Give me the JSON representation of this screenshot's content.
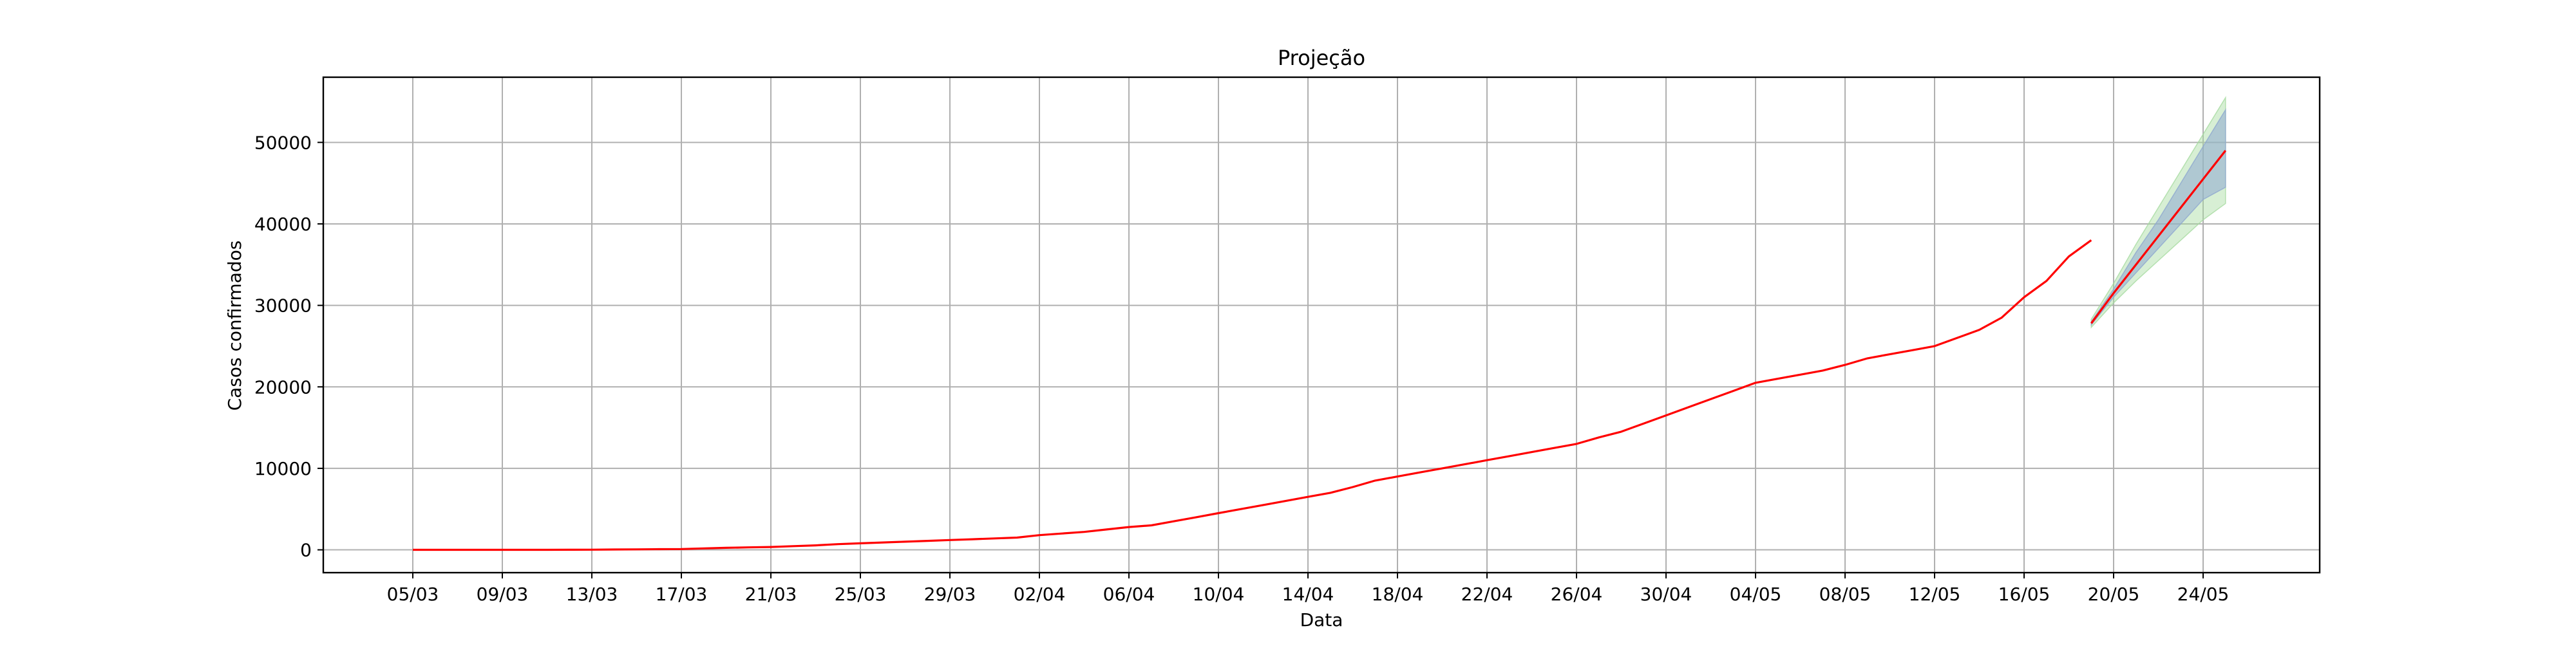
{
  "chart_data": {
    "type": "line",
    "title": "Projeção",
    "xlabel": "Data",
    "ylabel": "Casos confirmados",
    "x_tick_labels": [
      "05/03",
      "09/03",
      "13/03",
      "17/03",
      "21/03",
      "25/03",
      "29/03",
      "02/04",
      "06/04",
      "10/04",
      "14/04",
      "18/04",
      "22/04",
      "26/04",
      "30/04",
      "04/05",
      "08/05",
      "12/05",
      "16/05",
      "20/05",
      "24/05"
    ],
    "y_ticks": [
      0,
      10000,
      20000,
      30000,
      40000,
      50000
    ],
    "ylim": [
      -2800,
      58000
    ],
    "grid": true,
    "colors": {
      "line": "#ff0000",
      "band_outer": "#a6dba0",
      "band_inner": "#8ea7d0",
      "grid": "#b0b0b0"
    },
    "series": [
      {
        "x": [
          "05/03",
          "06/03",
          "07/03",
          "08/03",
          "09/03",
          "10/03",
          "11/03",
          "12/03",
          "13/03",
          "14/03",
          "15/03",
          "16/03",
          "17/03",
          "18/03",
          "19/03",
          "20/03",
          "21/03",
          "22/03",
          "23/03",
          "24/03",
          "25/03",
          "26/03",
          "27/03",
          "28/03",
          "29/03",
          "30/03",
          "31/03",
          "01/04",
          "02/04",
          "03/04",
          "04/04",
          "05/04",
          "06/04",
          "07/04",
          "08/04",
          "09/04",
          "10/04",
          "11/04",
          "12/04",
          "13/04",
          "14/04",
          "15/04",
          "16/04",
          "17/04",
          "18/04",
          "19/04",
          "20/04",
          "21/04",
          "22/04",
          "23/04",
          "24/04",
          "25/04",
          "26/04",
          "27/04",
          "28/04",
          "29/04",
          "30/04",
          "01/05",
          "02/05",
          "03/05",
          "04/05",
          "05/05",
          "06/05",
          "07/05",
          "08/05",
          "09/05",
          "10/05",
          "11/05",
          "12/05",
          "13/05",
          "14/05",
          "15/05",
          "16/05",
          "17/05",
          "18/05",
          "19/05"
        ],
        "values": [
          0,
          0,
          0,
          0,
          0,
          2,
          5,
          10,
          20,
          40,
          60,
          80,
          100,
          180,
          250,
          300,
          350,
          450,
          550,
          700,
          800,
          900,
          1000,
          1100,
          1200,
          1300,
          1400,
          1500,
          1800,
          2000,
          2200,
          2500,
          2800,
          3000,
          3500,
          4000,
          4500,
          5000,
          5500,
          6000,
          6500,
          7000,
          7700,
          8500,
          9000,
          9500,
          10000,
          10500,
          11000,
          11500,
          12000,
          12500,
          13000,
          13800,
          14500,
          15500,
          16500,
          17500,
          18500,
          19500,
          20500,
          21000,
          21500,
          22000,
          22700,
          23500,
          24000,
          24500,
          25000,
          26000,
          27000,
          28500,
          31000,
          33000,
          36000,
          38000
        ]
      }
    ],
    "projection": {
      "x": [
        "19/05",
        "20/05",
        "21/05",
        "22/05",
        "23/05",
        "24/05",
        "25/05"
      ],
      "values": [
        27800,
        31500,
        35000,
        38500,
        42000,
        45500,
        49000
      ],
      "inner_band": {
        "lower": [
          27600,
          31000,
          34000,
          37000,
          40000,
          43000,
          44500
        ],
        "upper": [
          28000,
          32000,
          36500,
          40500,
          45000,
          49500,
          54000
        ]
      },
      "outer_band": {
        "lower": [
          27300,
          30300,
          33000,
          35500,
          38000,
          40500,
          42500
        ],
        "upper": [
          28300,
          32700,
          37500,
          42000,
          46500,
          51000,
          55500
        ]
      }
    }
  }
}
